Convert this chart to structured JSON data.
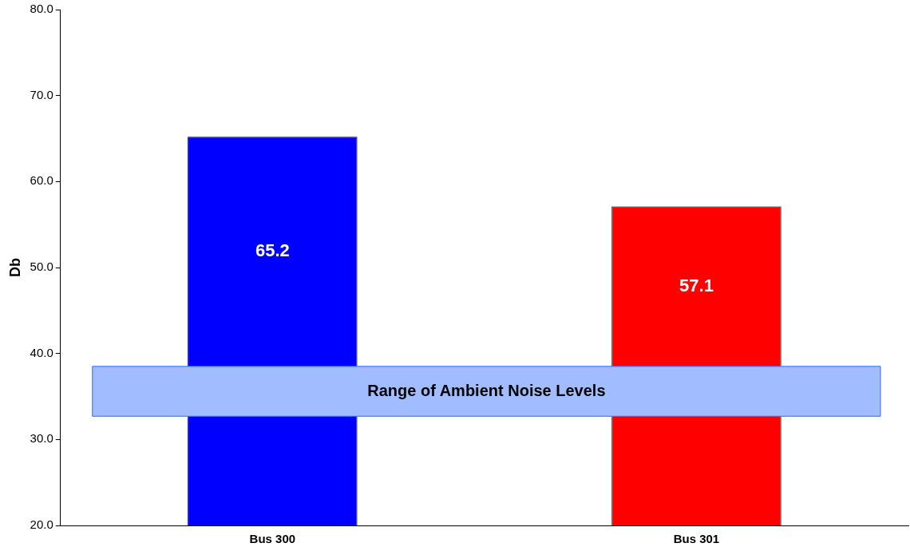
{
  "chart_data": {
    "type": "bar",
    "ylabel": "Db",
    "categories": [
      "Bus 300",
      "Bus 301"
    ],
    "values": [
      65.2,
      57.1
    ],
    "colors": [
      "#0000ff",
      "#ff0000"
    ],
    "ylim": [
      20,
      80
    ],
    "yticks": [
      {
        "value": 20,
        "label": "20.0"
      },
      {
        "value": 30,
        "label": "30.0"
      },
      {
        "value": 40,
        "label": "40.0"
      },
      {
        "value": 50,
        "label": "50.0"
      },
      {
        "value": 60,
        "label": "60.0"
      },
      {
        "value": 70,
        "label": "70.0"
      },
      {
        "value": 80,
        "label": "80.0"
      }
    ],
    "data_labels": true,
    "grid": false,
    "legend": false,
    "bands": [
      {
        "axis": "y",
        "from": 32.7,
        "to": 38.5,
        "label": "Range of Ambient Noise Levels",
        "color": "#2f6bff"
      }
    ]
  }
}
